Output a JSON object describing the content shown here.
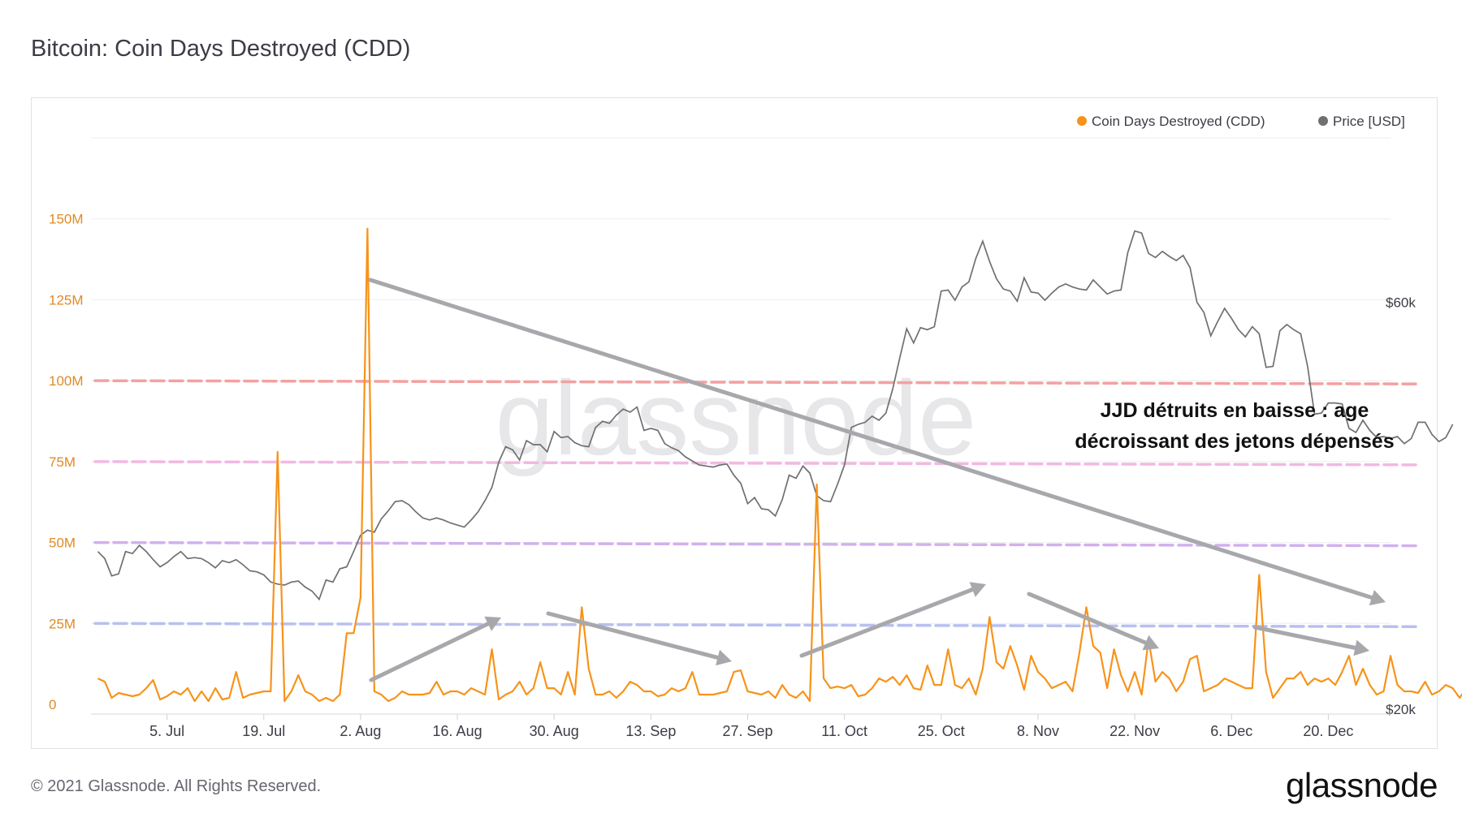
{
  "title": "Bitcoin: Coin Days Destroyed (CDD)",
  "footer": "© 2021 Glassnode. All Rights Reserved.",
  "brand": "glassnode",
  "watermark": "glassnode",
  "colors": {
    "cdd": "#f7931a",
    "price": "#707070",
    "arrow": "#a8a8ac"
  },
  "chart_data": {
    "type": "line",
    "legend": {
      "placement": "top-right",
      "items": [
        "Coin Days Destroyed (CDD)",
        "Price [USD]"
      ]
    },
    "x_ticks": [
      "5. Jul",
      "19. Jul",
      "2. Aug",
      "16. Aug",
      "30. Aug",
      "13. Sep",
      "27. Sep",
      "11. Oct",
      "25. Oct",
      "8. Nov",
      "22. Nov",
      "6. Dec",
      "20. Dec"
    ],
    "x_range_days": [
      -11,
      177
    ],
    "left_axis": {
      "ticks": [
        "0",
        "25M",
        "50M",
        "75M",
        "100M",
        "125M",
        "150M"
      ],
      "values": [
        0,
        25000000,
        50000000,
        75000000,
        100000000,
        125000000,
        150000000
      ],
      "range": [
        0,
        175000000
      ]
    },
    "right_axis": {
      "ticks": [
        "$20k",
        "$60k"
      ],
      "values": [
        20000,
        60000
      ],
      "range": [
        20000,
        72000
      ]
    },
    "reference_lines": [
      {
        "value": 100000000,
        "color": "#f4a0a0"
      },
      {
        "value": 75000000,
        "color": "#f2b8e2"
      },
      {
        "value": 50000000,
        "color": "#d2b0ee"
      },
      {
        "value": 25000000,
        "color": "#b8c0f0"
      }
    ],
    "annotation": [
      "JJD détruits en baisse : age",
      "décroissant des jetons dépensés"
    ],
    "series": [
      {
        "name": "Coin Days Destroyed (CDD)",
        "axis": "left",
        "step_days": 1,
        "start_day": -10,
        "values": [
          8,
          7,
          2,
          3.5,
          3,
          2.5,
          3,
          5,
          7.5,
          1.5,
          2.5,
          4,
          3,
          5,
          1,
          4,
          1,
          5,
          1.5,
          2,
          10,
          2,
          3,
          3.5,
          4,
          4,
          78,
          1,
          4,
          9,
          4,
          3,
          1,
          2,
          1,
          3,
          22,
          22,
          33,
          147,
          4,
          3,
          1,
          2,
          4,
          3,
          3,
          3,
          3.5,
          7,
          3,
          4,
          4,
          3,
          5,
          4,
          3,
          17,
          1.5,
          3,
          4,
          7,
          3,
          5,
          13,
          5,
          5,
          3,
          10,
          3,
          30,
          11,
          3,
          3,
          4,
          2,
          4,
          7,
          6,
          4,
          4,
          2.5,
          3,
          5,
          4,
          5,
          10,
          3,
          3,
          3,
          3.5,
          4,
          10,
          10.5,
          4,
          3.5,
          3,
          4,
          2,
          6,
          3,
          2,
          4,
          1,
          68,
          8,
          5,
          5.5,
          5,
          6,
          2.5,
          3,
          5,
          8,
          7,
          8.5,
          6,
          9,
          5,
          4.5,
          12,
          6,
          6,
          17,
          6,
          5,
          8,
          3,
          11,
          27,
          13,
          11,
          18,
          12,
          4.5,
          15,
          10,
          8,
          5,
          6,
          7,
          4,
          16,
          30,
          18,
          16,
          5,
          17,
          9,
          4,
          10,
          3,
          20,
          7,
          10,
          8,
          4,
          7,
          14,
          15,
          4,
          5,
          6,
          8,
          7,
          6,
          5,
          5,
          40,
          10,
          2,
          5,
          8,
          8,
          10,
          6,
          8,
          7,
          8,
          6,
          10,
          15,
          6,
          11,
          6,
          3,
          4,
          15,
          6,
          4,
          4,
          3.5,
          7,
          3,
          4,
          6,
          5,
          2,
          5,
          6,
          7,
          5,
          8
        ]
      },
      {
        "name": "Price [USD]",
        "axis": "right",
        "step_days": 1,
        "start_day": -10,
        "values": [
          35500,
          34800,
          33100,
          33300,
          35500,
          35300,
          36100,
          35500,
          34700,
          34000,
          34400,
          35000,
          35500,
          34800,
          34900,
          34800,
          34400,
          33900,
          34600,
          34400,
          34700,
          34200,
          33600,
          33500,
          33200,
          32500,
          32300,
          32200,
          32500,
          32600,
          32000,
          31600,
          30800,
          32700,
          32500,
          33800,
          34000,
          35500,
          37100,
          37600,
          37400,
          38700,
          39500,
          40400,
          40500,
          40100,
          39400,
          38800,
          38600,
          38800,
          38600,
          38300,
          38100,
          37900,
          38600,
          39400,
          40500,
          41800,
          44300,
          45800,
          45500,
          44500,
          46400,
          46000,
          46000,
          45300,
          47300,
          46700,
          46800,
          46200,
          45900,
          45800,
          47700,
          48300,
          48100,
          48900,
          49500,
          49200,
          49700,
          47400,
          47600,
          47400,
          46100,
          45700,
          45400,
          44800,
          44400,
          44000,
          43900,
          43800,
          44000,
          44100,
          43000,
          42200,
          40200,
          40800,
          39700,
          39600,
          39000,
          40600,
          43000,
          42700,
          43900,
          43200,
          41000,
          40500,
          40400,
          42100,
          44000,
          47700,
          48000,
          48200,
          48800,
          48400,
          49100,
          51500,
          54500,
          57400,
          56000,
          57500,
          57300,
          57600,
          61100,
          61200,
          60200,
          61500,
          62000,
          64300,
          66000,
          64000,
          62300,
          61300,
          61100,
          60100,
          62400,
          61000,
          60900,
          60200,
          60900,
          61500,
          61800,
          61500,
          61300,
          61200,
          62200,
          61500,
          60800,
          61100,
          61200,
          64900,
          67000,
          66800,
          64800,
          64400,
          65000,
          64500,
          64100,
          64600,
          63400,
          60000,
          59000,
          56700,
          58100,
          59400,
          58400,
          57300,
          56600,
          57600,
          56900,
          53600,
          53700,
          57200,
          57800,
          57300,
          56900,
          53700,
          49000,
          49100,
          50100,
          50100,
          50000,
          47600,
          47200,
          48400,
          47400,
          46700,
          46800,
          46600,
          46800,
          46100,
          46600,
          48200,
          48200,
          47000,
          46300,
          46700,
          48000
        ]
      }
    ]
  }
}
